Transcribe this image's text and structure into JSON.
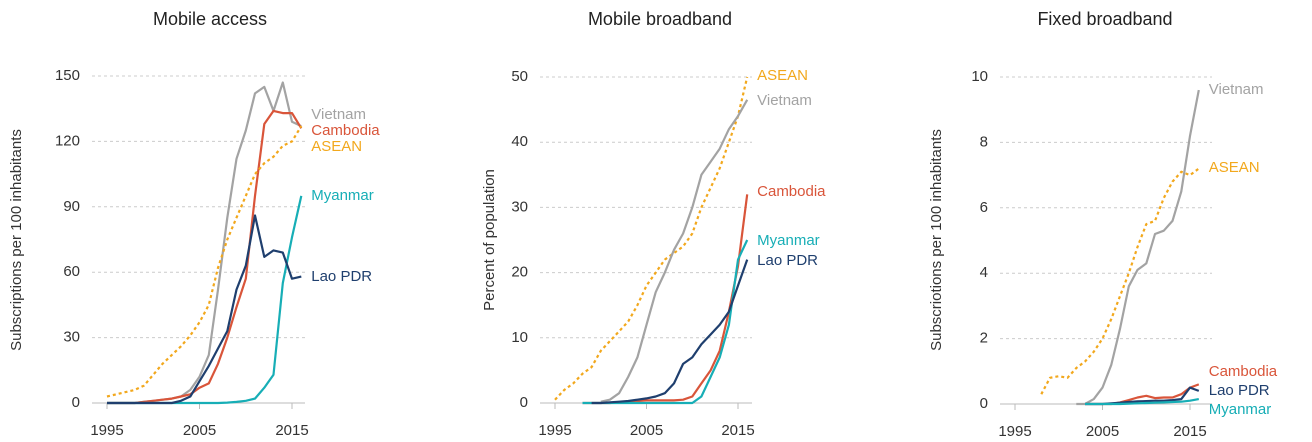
{
  "chart_data": [
    {
      "type": "line",
      "title": "Mobile access",
      "y_label": "Subscriptions per 100 inhabitants",
      "x": [
        1995,
        1996,
        1997,
        1998,
        1999,
        2000,
        2001,
        2002,
        2003,
        2004,
        2005,
        2006,
        2007,
        2008,
        2009,
        2010,
        2011,
        2012,
        2013,
        2014,
        2015,
        2016
      ],
      "xlim": [
        1993,
        2018
      ],
      "xticks": [
        1995,
        2005,
        2015
      ],
      "ylim": [
        0,
        150
      ],
      "yticks": [
        0,
        30,
        60,
        90,
        120,
        150
      ],
      "grid": true,
      "series": [
        {
          "name": "Vietnam",
          "color": "#a3a3a3",
          "dashed": false,
          "values": [
            0,
            0,
            0,
            0,
            0.5,
            1,
            1.5,
            2,
            3,
            6,
            12,
            22,
            52,
            85,
            112,
            125,
            142,
            145,
            134,
            147,
            129,
            127
          ]
        },
        {
          "name": "Cambodia",
          "color": "#d9553a",
          "dashed": false,
          "values": [
            0,
            0,
            0,
            0,
            0.5,
            1,
            1.5,
            2,
            3,
            4,
            7,
            9,
            18,
            30,
            44,
            57,
            95,
            128,
            134,
            133,
            133,
            126
          ]
        },
        {
          "name": "ASEAN",
          "color": "#f2a81d",
          "dashed": true,
          "values": [
            3,
            4,
            5,
            6,
            8,
            13,
            18,
            22,
            26,
            31,
            37,
            45,
            62,
            75,
            85,
            95,
            105,
            110,
            113,
            118,
            120,
            127
          ]
        },
        {
          "name": "Myanmar",
          "color": "#17aeb6",
          "dashed": false,
          "values": [
            0,
            0,
            0,
            0,
            0,
            0,
            0,
            0,
            0,
            0,
            0,
            0,
            0,
            0.2,
            0.5,
            1,
            2,
            7,
            13,
            55,
            76,
            95
          ]
        },
        {
          "name": "Lao PDR",
          "color": "#1f3f6e",
          "dashed": false,
          "values": [
            0,
            0,
            0,
            0,
            0,
            0,
            0,
            0,
            1,
            3,
            10,
            17,
            25,
            33,
            52,
            63,
            86,
            67,
            70,
            69,
            57,
            58
          ]
        }
      ]
    },
    {
      "type": "line",
      "title": "Mobile broadband",
      "y_label": "Percent of population",
      "x": [
        1995,
        1996,
        1997,
        1998,
        1999,
        2000,
        2001,
        2002,
        2003,
        2004,
        2005,
        2006,
        2007,
        2008,
        2009,
        2010,
        2011,
        2012,
        2013,
        2014,
        2015,
        2016
      ],
      "xlim": [
        1993,
        2018
      ],
      "xticks": [
        1995,
        2005,
        2015
      ],
      "ylim": [
        0,
        50
      ],
      "yticks": [
        0,
        10,
        20,
        30,
        40,
        50
      ],
      "grid": true,
      "series": [
        {
          "name": "ASEAN",
          "color": "#f2a81d",
          "dashed": true,
          "values": [
            0.5,
            2,
            3,
            4.5,
            5.5,
            8,
            9.5,
            11,
            12.5,
            15,
            18,
            20,
            22,
            23,
            24,
            26,
            30,
            33,
            36,
            40,
            44,
            50
          ]
        },
        {
          "name": "Vietnam",
          "color": "#a3a3a3",
          "dashed": false,
          "values": [
            null,
            null,
            null,
            null,
            null,
            0.2,
            0.5,
            1.5,
            4,
            7,
            12,
            17,
            20,
            23.5,
            26,
            30,
            35,
            37,
            39,
            42,
            44,
            46.5
          ]
        },
        {
          "name": "Cambodia",
          "color": "#d9553a",
          "dashed": false,
          "values": [
            null,
            null,
            null,
            0,
            0,
            0,
            0,
            0.1,
            0.2,
            0.3,
            0.4,
            0.4,
            0.4,
            0.4,
            0.5,
            1,
            3,
            5,
            8,
            14,
            21,
            32
          ]
        },
        {
          "name": "Myanmar",
          "color": "#17aeb6",
          "dashed": false,
          "values": [
            null,
            null,
            null,
            0,
            0,
            0,
            0,
            0,
            0,
            0,
            0,
            0,
            0,
            0,
            0,
            0,
            1,
            4,
            7,
            12,
            22,
            25
          ]
        },
        {
          "name": "Lao PDR",
          "color": "#1f3f6e",
          "dashed": false,
          "values": [
            null,
            null,
            null,
            null,
            0,
            0,
            0.1,
            0.2,
            0.3,
            0.5,
            0.7,
            1,
            1.5,
            3,
            6,
            7,
            9,
            10.5,
            12,
            14,
            18,
            22
          ]
        }
      ]
    },
    {
      "type": "line",
      "title": "Fixed broadband",
      "y_label": "Subscriotions per 100 inhabitants",
      "x": [
        1995,
        1996,
        1997,
        1998,
        1999,
        2000,
        2001,
        2002,
        2003,
        2004,
        2005,
        2006,
        2007,
        2008,
        2009,
        2010,
        2011,
        2012,
        2013,
        2014,
        2015,
        2016
      ],
      "xlim": [
        1993,
        2018
      ],
      "xticks": [
        1995,
        2005,
        2015
      ],
      "ylim": [
        0,
        10
      ],
      "yticks": [
        0,
        2,
        4,
        6,
        8,
        10
      ],
      "grid": true,
      "series": [
        {
          "name": "Vietnam",
          "color": "#a3a3a3",
          "dashed": false,
          "values": [
            null,
            null,
            null,
            null,
            null,
            null,
            null,
            0,
            0,
            0.15,
            0.5,
            1.2,
            2.3,
            3.6,
            4.1,
            4.3,
            5.2,
            5.3,
            5.6,
            6.5,
            8.2,
            9.6
          ]
        },
        {
          "name": "ASEAN",
          "color": "#f2a81d",
          "dashed": true,
          "values": [
            null,
            null,
            null,
            0.3,
            0.8,
            0.85,
            0.8,
            1.1,
            1.3,
            1.6,
            2,
            2.6,
            3.3,
            4,
            4.8,
            5.5,
            5.6,
            6.3,
            6.8,
            7.1,
            7,
            7.2
          ]
        },
        {
          "name": "Cambodia",
          "color": "#d9553a",
          "dashed": false,
          "values": [
            null,
            null,
            null,
            null,
            null,
            null,
            null,
            null,
            0,
            0,
            0,
            0,
            0.05,
            0.12,
            0.2,
            0.25,
            0.18,
            0.2,
            0.2,
            0.3,
            0.5,
            0.6
          ]
        },
        {
          "name": "Lao PDR",
          "color": "#1f3f6e",
          "dashed": false,
          "values": [
            null,
            null,
            null,
            null,
            null,
            null,
            null,
            null,
            0,
            0,
            0,
            0.02,
            0.04,
            0.06,
            0.08,
            0.09,
            0.1,
            0.1,
            0.12,
            0.15,
            0.5,
            0.4
          ]
        },
        {
          "name": "Myanmar",
          "color": "#17aeb6",
          "dashed": false,
          "values": [
            null,
            null,
            null,
            null,
            null,
            null,
            null,
            null,
            0,
            0,
            0,
            0,
            0,
            0.01,
            0.02,
            0.03,
            0.04,
            0.05,
            0.06,
            0.07,
            0.1,
            0.15
          ]
        }
      ]
    }
  ]
}
